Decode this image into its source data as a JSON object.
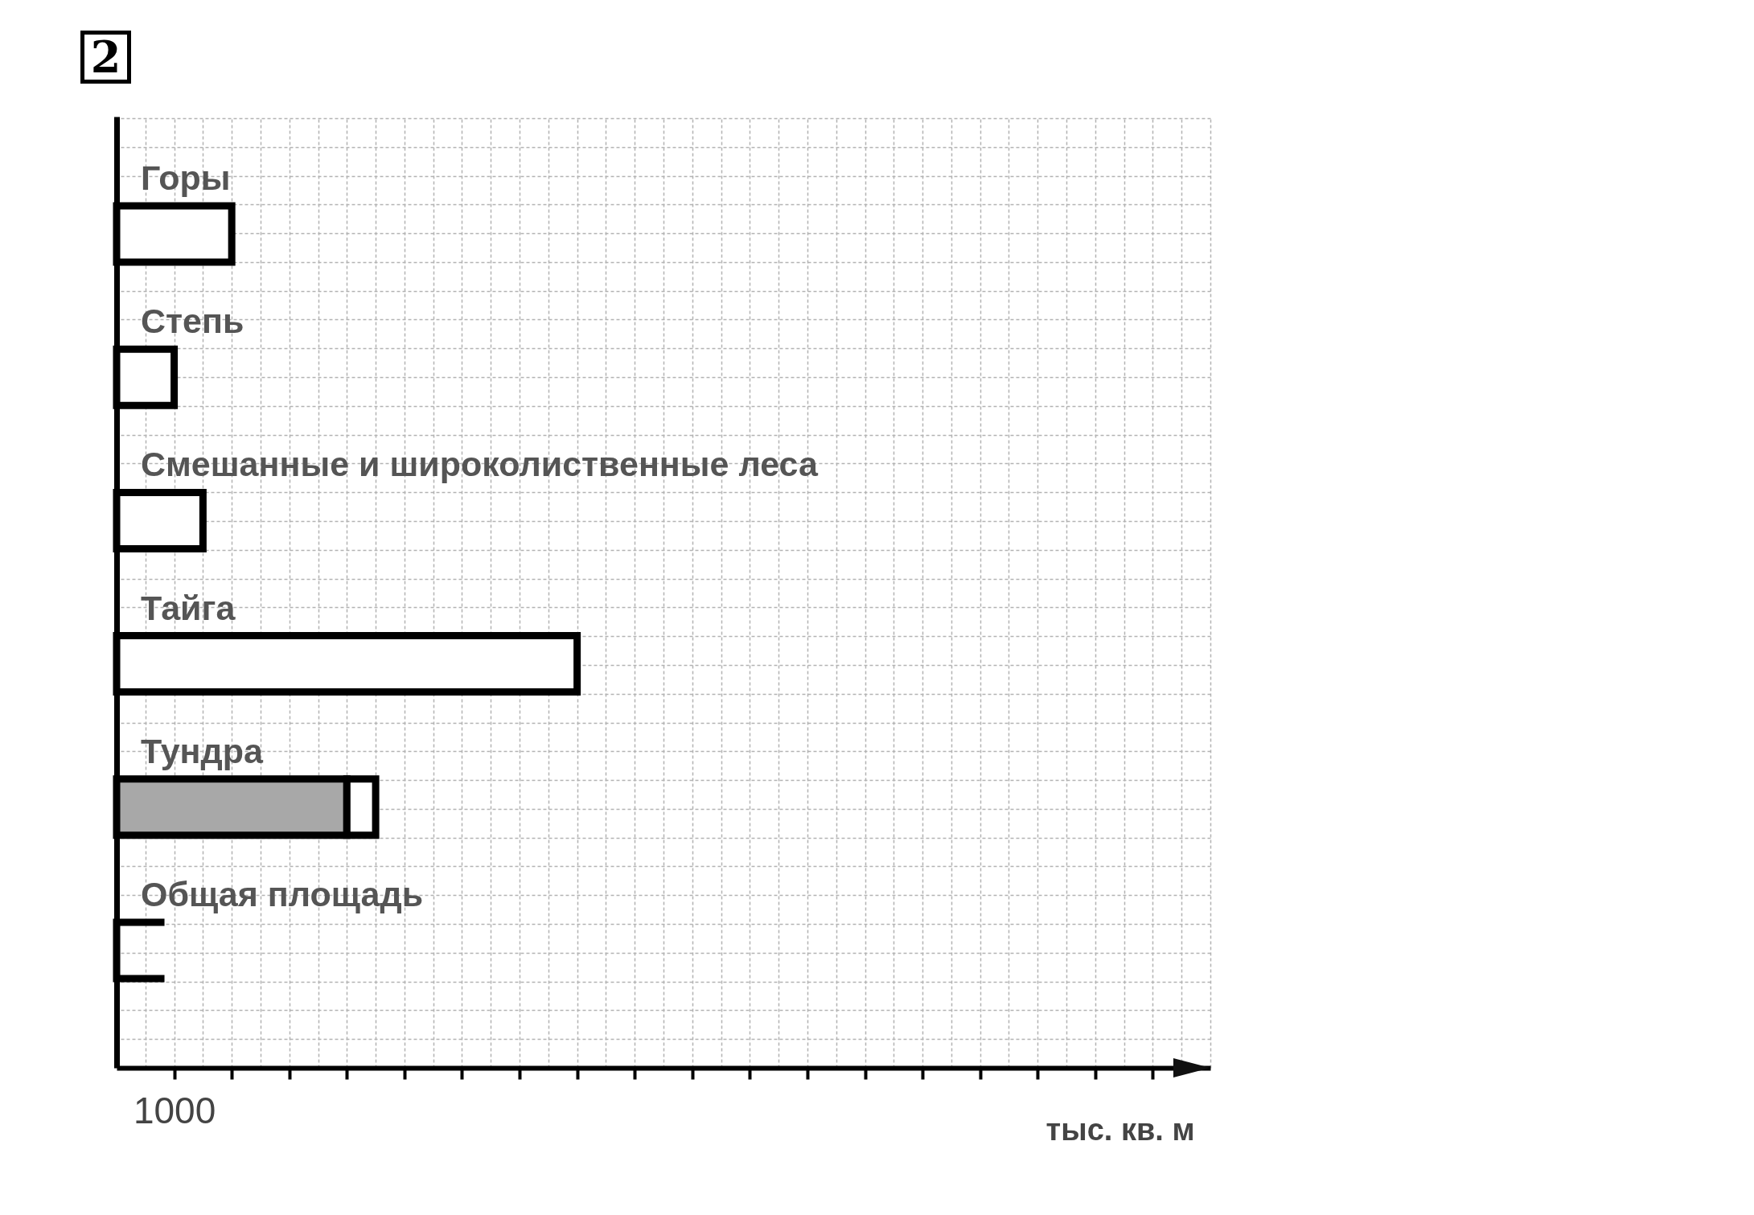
{
  "chart_data": {
    "type": "bar",
    "orientation": "horizontal",
    "stacked": true,
    "annotations": [
      "2"
    ],
    "xlabel": "тыс. кв. м",
    "categories": [
      "Горы",
      "Степь",
      "Смешанные и широколиственные леса",
      "Тайга",
      "Тундра",
      "Общая площадь"
    ],
    "series": [
      {
        "color": "#a8a8a8",
        "values": [
          null,
          null,
          null,
          null,
          4000,
          null
        ]
      },
      {
        "color": "#ffffff",
        "values": [
          2000,
          1000,
          1500,
          8000,
          500,
          null
        ]
      }
    ],
    "xlim": [
      0,
      19000
    ],
    "xticks": [
      1000,
      {
        "value": 2000,
        "label": null
      },
      {
        "value": 3000,
        "label": null
      },
      {
        "value": 4000,
        "label": null
      },
      {
        "value": 5000,
        "label": null
      },
      {
        "value": 6000,
        "label": null
      },
      {
        "value": 7000,
        "label": null
      },
      {
        "value": 8000,
        "label": null
      },
      {
        "value": 9000,
        "label": null
      },
      {
        "value": 10000,
        "label": null
      },
      {
        "value": 11000,
        "label": null
      },
      {
        "value": 12000,
        "label": null
      },
      {
        "value": 13000,
        "label": null
      },
      {
        "value": 14000,
        "label": null
      },
      {
        "value": 15000,
        "label": null
      },
      {
        "value": 16000,
        "label": null
      },
      {
        "value": 17000,
        "label": null
      },
      {
        "value": 18000,
        "label": null
      }
    ],
    "grid": true
  }
}
